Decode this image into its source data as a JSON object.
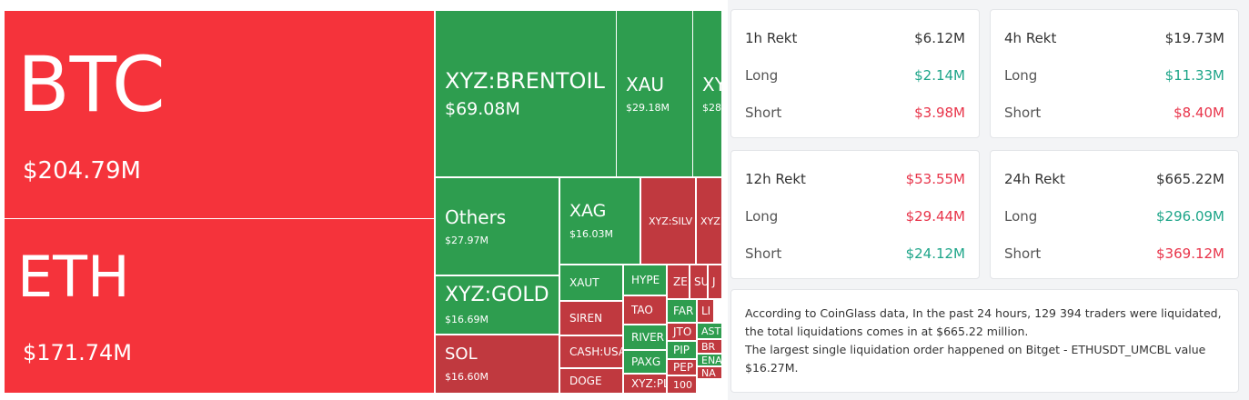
{
  "treemap": {
    "tiles": [
      {
        "label": "BTC",
        "value": "$204.79M"
      },
      {
        "label": "ETH",
        "value": "$171.74M"
      },
      {
        "label": "XYZ:BRENTOIL",
        "value": "$69.08M"
      },
      {
        "label": "XAU",
        "value": "$29.18M"
      },
      {
        "label": "XY",
        "value": "$28"
      },
      {
        "label": "Others",
        "value": "$27.97M"
      },
      {
        "label": "XAG",
        "value": "$16.03M"
      },
      {
        "label": "XYZ:SILV"
      },
      {
        "label": "XYZ"
      },
      {
        "label": "XYZ:GOLD",
        "value": "$16.69M"
      },
      {
        "label": "SOL",
        "value": "$16.60M"
      },
      {
        "label": "XAUT"
      },
      {
        "label": "SIREN"
      },
      {
        "label": "CASH:USA"
      },
      {
        "label": "DOGE"
      },
      {
        "label": "HYPE"
      },
      {
        "label": "TAO"
      },
      {
        "label": "RIVER"
      },
      {
        "label": "PAXG"
      },
      {
        "label": "XYZ:PL"
      },
      {
        "label": "ZE"
      },
      {
        "label": "SU"
      },
      {
        "label": "J"
      },
      {
        "label": "FAR"
      },
      {
        "label": "LI"
      },
      {
        "label": "JTO"
      },
      {
        "label": "AST"
      },
      {
        "label": "PIP"
      },
      {
        "label": "BR"
      },
      {
        "label": "PEP"
      },
      {
        "label": "ENA"
      },
      {
        "label": "100"
      },
      {
        "label": "NA"
      }
    ]
  },
  "cards": [
    {
      "title": "1h Rekt",
      "total": "$6.12M",
      "rows": [
        {
          "label": "Long",
          "value": "$2.14M"
        },
        {
          "label": "Short",
          "value": "$3.98M"
        }
      ]
    },
    {
      "title": "4h Rekt",
      "total": "$19.73M",
      "rows": [
        {
          "label": "Long",
          "value": "$11.33M"
        },
        {
          "label": "Short",
          "value": "$8.40M"
        }
      ]
    },
    {
      "title": "12h Rekt",
      "total": "$53.55M",
      "rows": [
        {
          "label": "Long",
          "value": "$29.44M"
        },
        {
          "label": "Short",
          "value": "$24.12M"
        }
      ]
    },
    {
      "title": "24h Rekt",
      "total": "$665.22M",
      "rows": [
        {
          "label": "Long",
          "value": "$296.09M"
        },
        {
          "label": "Short",
          "value": "$369.12M"
        }
      ]
    }
  ],
  "note": [
    "According to CoinGlass data, In the past 24 hours, 129 394 traders were liquidated, the total liquidations comes in at $665.22 million.",
    "The largest single liquidation order happened on Bitget - ETHUSDT_UMCBL value $16.27M."
  ]
}
